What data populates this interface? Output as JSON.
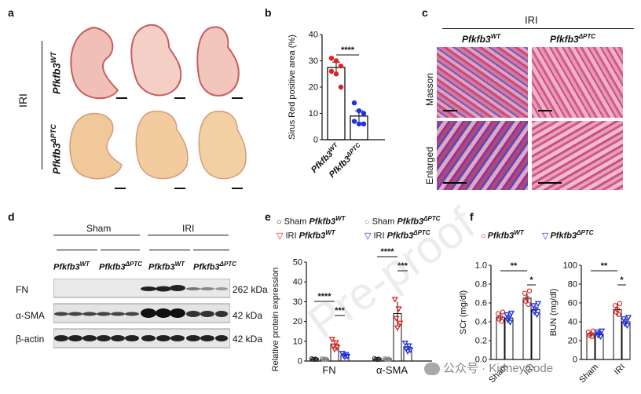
{
  "panels": {
    "a": {
      "letter": "a",
      "group_label": "IRI",
      "row_wt": "Pfkfb3",
      "row_wt_sup": "WT",
      "row_ko": "Pfkfb3",
      "row_ko_sup": "ΔPTC"
    },
    "b": {
      "letter": "b",
      "ylabel": "Sirus Red positive area (%)",
      "sig": "****",
      "xtick_wt": "Pfkfb3",
      "xtick_wt_sup": "WT",
      "xtick_ko": "Pfkfb3",
      "xtick_ko_sup": "ΔPTC"
    },
    "c": {
      "letter": "c",
      "group_label": "IRI",
      "col_wt": "Pfkfb3",
      "col_wt_sup": "WT",
      "col_ko": "Pfkfb3",
      "col_ko_sup": "ΔPTC",
      "row1": "Masson",
      "row2": "Enlarged"
    },
    "d": {
      "letter": "d",
      "sham": "Sham",
      "iri": "IRI",
      "geno_wt": "Pfkfb3",
      "geno_wt_sup": "WT",
      "geno_ko": "Pfkfb3",
      "geno_ko_sup": "ΔPTC",
      "rows": [
        {
          "name": "FN",
          "kda": "262 kDa"
        },
        {
          "name": "α-SMA",
          "kda": "42 kDa"
        },
        {
          "name": "β-actin",
          "kda": "42 kDa"
        }
      ]
    },
    "e": {
      "letter": "e",
      "legend": [
        {
          "label": "Sham Pfkfb3",
          "sup": "WT",
          "color": "#222222",
          "shape": "circle"
        },
        {
          "label": "Sham Pfkfb3",
          "sup": "ΔPTC",
          "color": "#888888",
          "shape": "circle"
        },
        {
          "label": "IRI Pfkfb3",
          "sup": "WT",
          "color": "#e02020",
          "shape": "triangle-down"
        },
        {
          "label": "IRI Pfkfb3",
          "sup": "ΔPTC",
          "color": "#2030e0",
          "shape": "triangle-down"
        }
      ],
      "ylabel": "Relative protein expression",
      "sig1": "****",
      "sig2": "***",
      "sig3": "****",
      "sig4": "***"
    },
    "f": {
      "letter": "f",
      "legend": [
        {
          "label": "Pfkfb3",
          "sup": "WT",
          "color": "#e02020"
        },
        {
          "label": "Pfkfb3",
          "sup": "ΔPTC",
          "color": "#2030e0"
        }
      ],
      "sig_sham_iri": "**",
      "sig_iri": "*"
    }
  },
  "watermark_text": "Pre-proof",
  "wechat_text": "公众号 · KidneyCode",
  "chart_data": [
    {
      "type": "bar",
      "panel": "b",
      "categories": [
        "Pfkfb3WT",
        "Pfkfb3ΔPTC"
      ],
      "values": [
        27.5,
        9
      ],
      "errors": [
        2,
        2
      ],
      "points": [
        [
          31,
          30,
          28,
          26,
          25,
          20
        ],
        [
          14,
          11,
          10,
          7,
          6,
          6
        ]
      ],
      "ylabel": "Sirus Red positive area (%)",
      "ylim": [
        0,
        40
      ],
      "yticks": [
        0,
        10,
        20,
        30,
        40
      ],
      "colors": [
        "#e02020",
        "#2030e0"
      ]
    },
    {
      "type": "bar",
      "panel": "e",
      "categories": [
        "FN",
        "α-SMA"
      ],
      "series": [
        {
          "name": "Sham Pfkfb3WT",
          "values": [
            1,
            1
          ],
          "errors": [
            0.4,
            0.4
          ],
          "color": "#222222"
        },
        {
          "name": "Sham Pfkfb3ΔPTC",
          "values": [
            1,
            1
          ],
          "errors": [
            0.4,
            0.4
          ],
          "color": "#888888"
        },
        {
          "name": "IRI Pfkfb3WT",
          "values": [
            8.5,
            24
          ],
          "errors": [
            2,
            6
          ],
          "color": "#e02020"
        },
        {
          "name": "IRI Pfkfb3ΔPTC",
          "values": [
            3,
            7
          ],
          "errors": [
            1,
            1.5
          ],
          "color": "#2030e0"
        }
      ],
      "ylabel": "Relative protein expression",
      "ylim": [
        0,
        50
      ],
      "yticks": [
        0,
        10,
        20,
        30,
        40,
        50
      ]
    },
    {
      "type": "bar",
      "panel": "f-left",
      "categories": [
        "Sham",
        "IRI"
      ],
      "series": [
        {
          "name": "Pfkfb3WT",
          "values": [
            0.45,
            0.65
          ],
          "errors": [
            0.04,
            0.05
          ],
          "color": "#e02020"
        },
        {
          "name": "Pfkfb3ΔPTC",
          "values": [
            0.44,
            0.53
          ],
          "errors": [
            0.04,
            0.04
          ],
          "color": "#2030e0"
        }
      ],
      "ylabel": "SCr (mg/dl)",
      "ylim": [
        0.0,
        1.0
      ],
      "yticks": [
        0.0,
        0.2,
        0.4,
        0.6,
        0.8,
        1.0
      ],
      "ytick_labels": [
        "0.0",
        "0.2",
        "0.4",
        "0.6",
        "0.8",
        "1.0"
      ]
    },
    {
      "type": "bar",
      "panel": "f-right",
      "categories": [
        "Sham",
        "IRI"
      ],
      "series": [
        {
          "name": "Pfkfb3WT",
          "values": [
            27,
            53
          ],
          "errors": [
            2,
            7
          ],
          "color": "#e02020"
        },
        {
          "name": "Pfkfb3ΔPTC",
          "values": [
            27,
            40
          ],
          "errors": [
            3,
            4
          ],
          "color": "#2030e0"
        }
      ],
      "ylabel": "BUN (mg/dl)",
      "ylim": [
        0,
        100
      ],
      "yticks": [
        0,
        20,
        40,
        60,
        80,
        100
      ]
    }
  ]
}
